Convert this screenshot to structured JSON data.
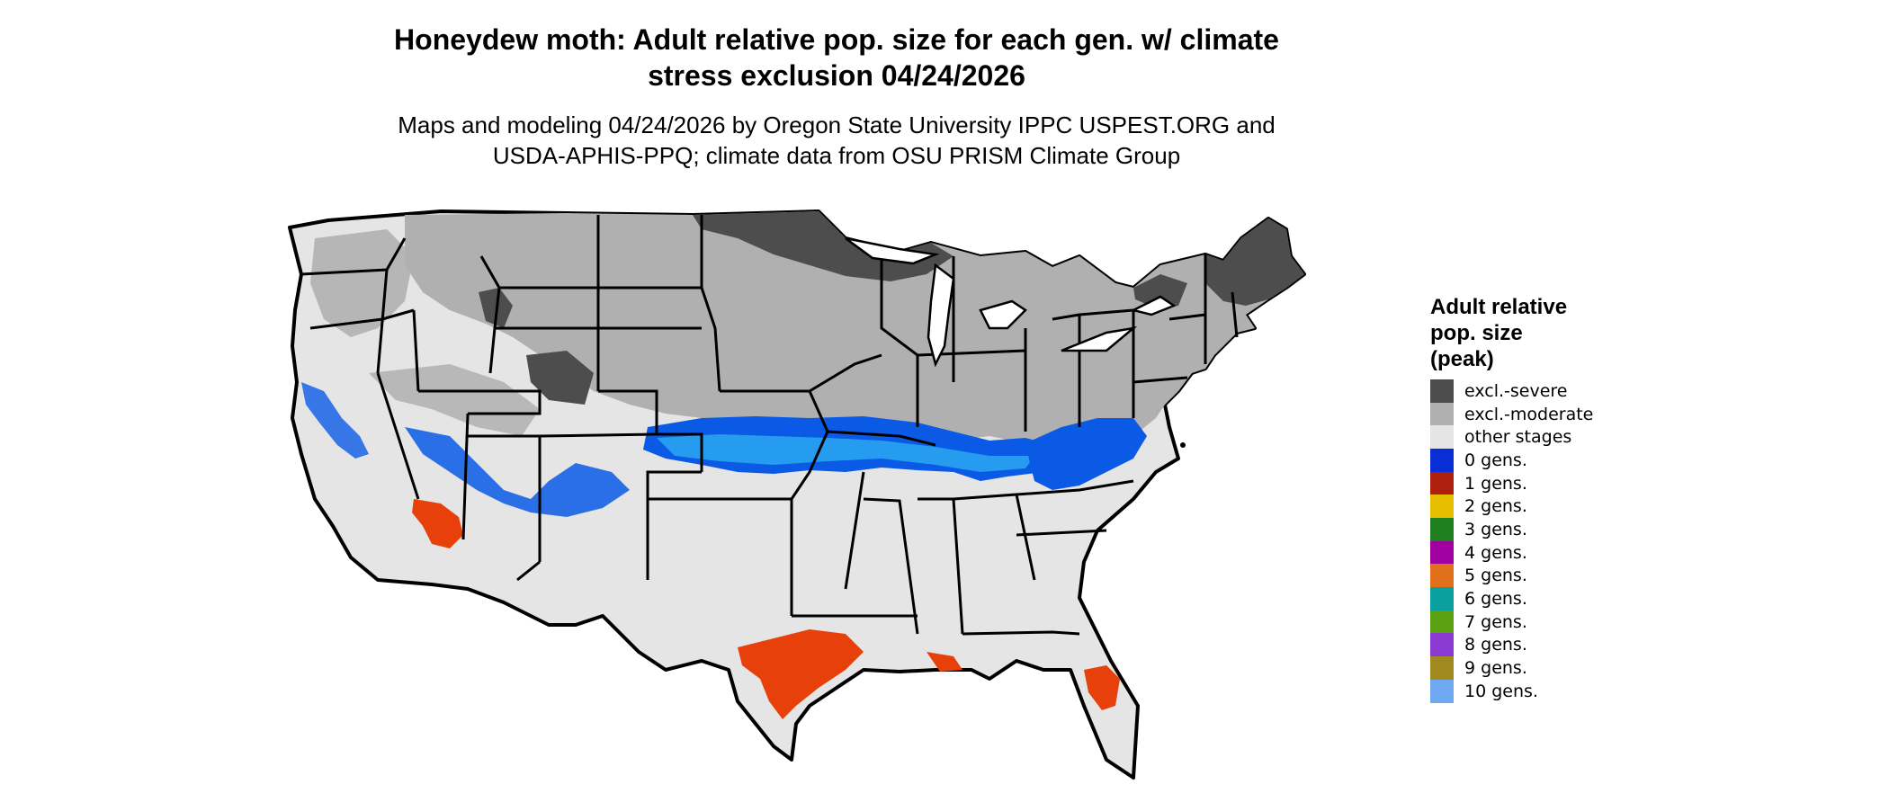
{
  "title_line1": "Honeydew moth: Adult relative pop. size for each gen. w/ climate",
  "title_line2": "stress exclusion 04/24/2026",
  "subtitle_line1": "Maps and modeling 04/24/2026 by Oregon State University IPPC USPEST.ORG and",
  "subtitle_line2": "USDA-APHIS-PPQ; climate data from OSU PRISM Climate Group",
  "legend": {
    "title_line1": "Adult relative",
    "title_line2": "pop. size",
    "title_line3": "(peak)",
    "items": [
      {
        "label": "excl.-severe",
        "color": "#4d4d4d"
      },
      {
        "label": "excl.-moderate",
        "color": "#b0b0b0"
      },
      {
        "label": "other stages",
        "color": "#e5e5e5"
      },
      {
        "label": "0 gens.",
        "color": "#0a2ed6"
      },
      {
        "label": "1 gens.",
        "color": "#b0200f"
      },
      {
        "label": "2 gens.",
        "color": "#e6c000"
      },
      {
        "label": "3 gens.",
        "color": "#1f7f1f"
      },
      {
        "label": "4 gens.",
        "color": "#a000a0"
      },
      {
        "label": "5 gens.",
        "color": "#e0701a"
      },
      {
        "label": "6 gens.",
        "color": "#0aa0a0"
      },
      {
        "label": "7 gens.",
        "color": "#5aa010"
      },
      {
        "label": "8 gens.",
        "color": "#8a3ad0"
      },
      {
        "label": "9 gens.",
        "color": "#a08a20"
      },
      {
        "label": "10 gens.",
        "color": "#6ea8f0"
      }
    ]
  },
  "map_colors": {
    "other_stages": "#e5e5e5",
    "excl_moderate": "#b0b0b0",
    "excl_severe": "#4d4d4d",
    "gen0_blue": "#0a5ae6",
    "gen0_light": "#2aa8f0",
    "gen1_red": "#e8400a",
    "border": "#000000"
  }
}
